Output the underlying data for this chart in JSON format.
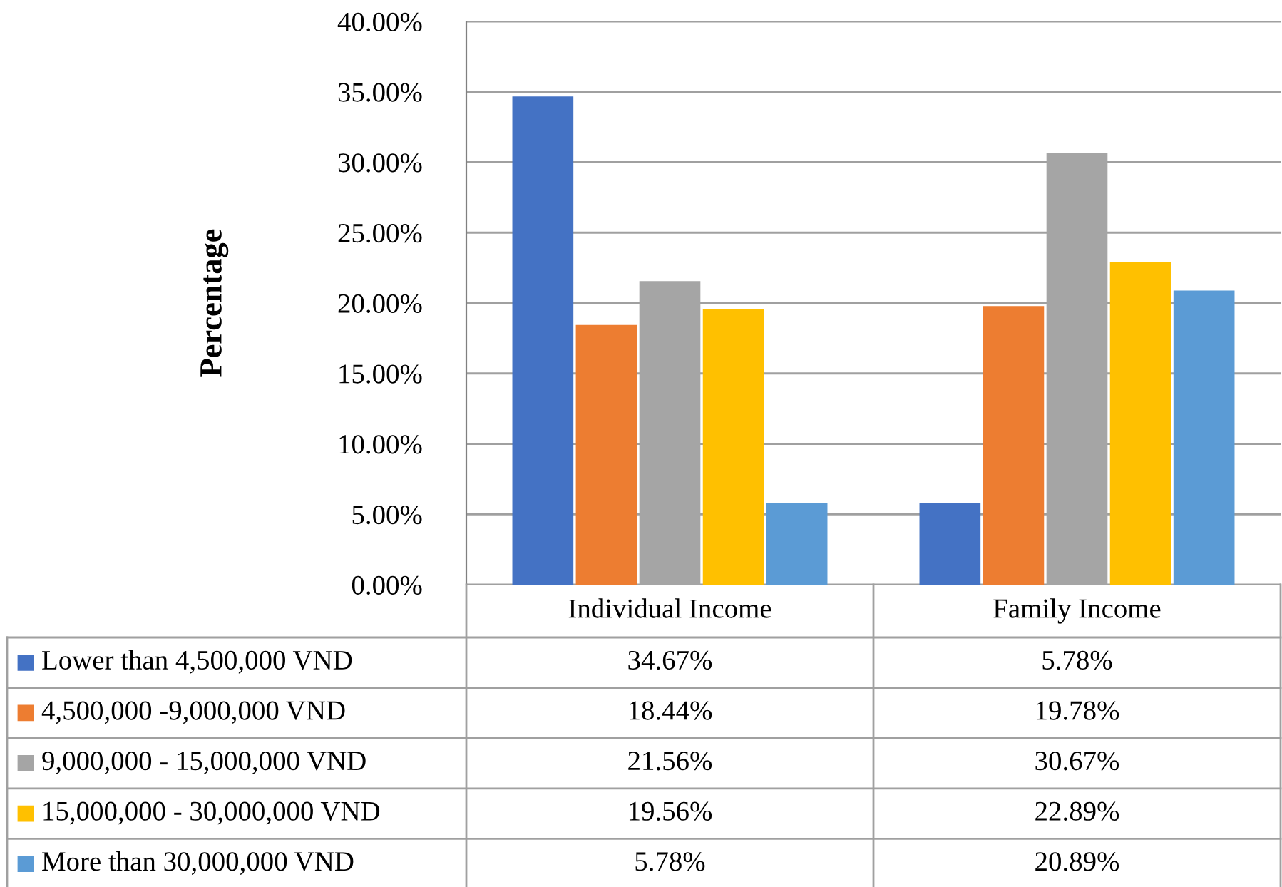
{
  "chart_data": {
    "type": "bar",
    "ylabel": "Percentage",
    "categories": [
      "Individual Income",
      "Family Income"
    ],
    "series": [
      {
        "name": "Lower than 4,500,000 VND",
        "color": "#4472c4",
        "values": [
          34.67,
          5.78
        ],
        "value_labels": [
          "34.67%",
          "5.78%"
        ]
      },
      {
        "name": "4,500,000 -9,000,000 VND",
        "color": "#ed7d31",
        "values": [
          18.44,
          19.78
        ],
        "value_labels": [
          "18.44%",
          "19.78%"
        ]
      },
      {
        "name": "9,000,000 - 15,000,000 VND",
        "color": "#a5a5a5",
        "values": [
          21.56,
          30.67
        ],
        "value_labels": [
          "21.56%",
          "30.67%"
        ]
      },
      {
        "name": "15,000,000 - 30,000,000 VND",
        "color": "#ffc000",
        "values": [
          19.56,
          22.89
        ],
        "value_labels": [
          "19.56%",
          "22.89%"
        ]
      },
      {
        "name": "More than 30,000,000 VND",
        "color": "#5b9bd5",
        "values": [
          5.78,
          20.89
        ],
        "value_labels": [
          "5.78%",
          "20.89%"
        ]
      }
    ],
    "ylim": [
      0,
      40
    ],
    "yticks": [
      {
        "value": 0,
        "label": "0.00%"
      },
      {
        "value": 5,
        "label": "5.00%"
      },
      {
        "value": 10,
        "label": "10.00%"
      },
      {
        "value": 15,
        "label": "15.00%"
      },
      {
        "value": 20,
        "label": "20.00%"
      },
      {
        "value": 25,
        "label": "25.00%"
      },
      {
        "value": 30,
        "label": "30.00%"
      },
      {
        "value": 35,
        "label": "35.00%"
      },
      {
        "value": 40,
        "label": "40.00%"
      }
    ],
    "grid": "y",
    "legend": "bottom"
  }
}
